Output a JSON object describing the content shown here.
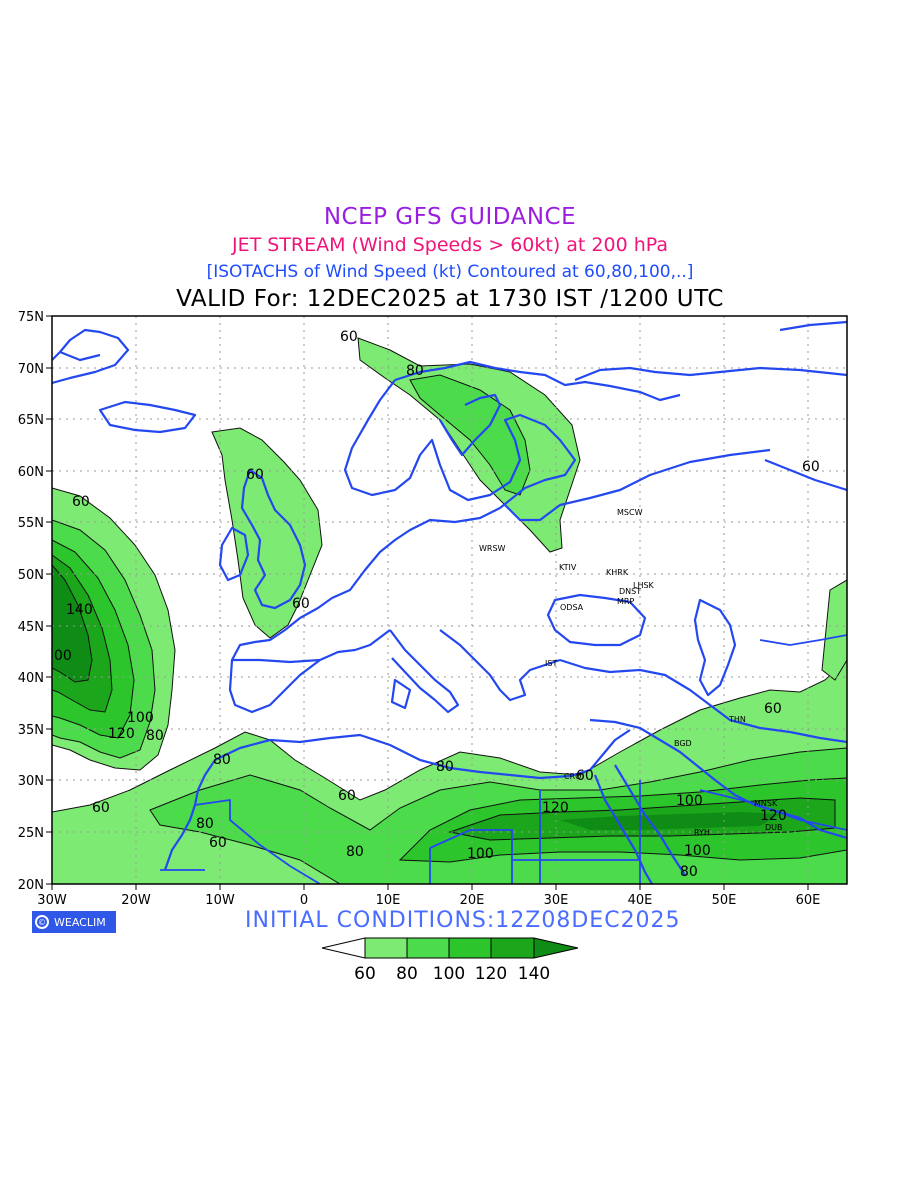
{
  "header": {
    "line1": "NCEP GFS GUIDANCE",
    "line2": "JET STREAM (Wind Speeds > 60kt) at 200 hPa",
    "line3": "[ISOTACHS of Wind Speed (kt) Contoured at 60,80,100,..]",
    "line4": "VALID For: 12DEC2025 at 1730 IST /1200 UTC"
  },
  "footer": {
    "initial_conditions": "INITIAL  CONDITIONS:12Z08DEC2025",
    "logo_text": "WEACLIM",
    "logo_icon": "copyright-ring-icon"
  },
  "map": {
    "lat_ticks": [
      "75N",
      "70N",
      "65N",
      "60N",
      "55N",
      "50N",
      "45N",
      "40N",
      "35N",
      "30N",
      "25N",
      "20N"
    ],
    "lon_ticks": [
      "30W",
      "20W",
      "10W",
      "0",
      "10E",
      "20E",
      "30E",
      "40E",
      "50E",
      "60E"
    ],
    "contour_labels": [
      "60",
      "80",
      "60",
      "60",
      "60",
      "140",
      "00",
      "100",
      "120",
      "80",
      "80",
      "60",
      "80",
      "60",
      "60",
      "80",
      "120",
      "100",
      "80",
      "100",
      "120",
      "100",
      "60",
      "60",
      "80",
      "60"
    ],
    "cities": [
      "MSCW",
      "WRSW",
      "KTIV",
      "KHRK",
      "LHSK",
      "DNST",
      "MRP",
      "ODSA",
      "IST",
      "THN",
      "BGD",
      "CRO",
      "MNSK",
      "DUB",
      "RYH"
    ]
  },
  "legend": {
    "values": [
      "60",
      "80",
      "100",
      "120",
      "140"
    ],
    "colors": [
      "#ffffff",
      "#7deb73",
      "#4bdb4b",
      "#2cc52c",
      "#1ba61b",
      "#0f8c16"
    ]
  },
  "colors": {
    "c60": "#7deb73",
    "c80": "#4bdb4b",
    "c100": "#2cc52c",
    "c120": "#1ba61b",
    "c140": "#0f8c16",
    "coast": "#2448f0"
  }
}
